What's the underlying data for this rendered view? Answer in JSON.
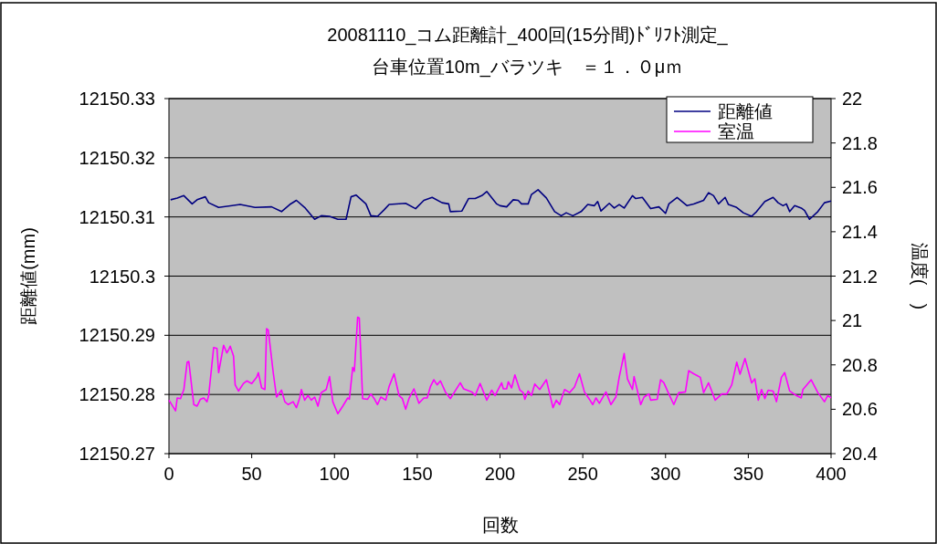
{
  "chart_data": {
    "type": "line",
    "title": "20081110_コム距離計_400回(15分間)ﾄﾞﾘﾌﾄ測定_",
    "subtitle": "台車位置10m_バラツキ　＝１．０μｍ",
    "xlabel": "回数",
    "ylabel": "距離値(mm)",
    "y2label": "温度(　)",
    "xlim": [
      0,
      400
    ],
    "xticks": [
      0,
      50,
      100,
      150,
      200,
      250,
      300,
      350,
      400
    ],
    "ylim": [
      12150.27,
      12150.33
    ],
    "yticks": [
      12150.27,
      12150.28,
      12150.29,
      12150.3,
      12150.31,
      12150.32,
      12150.33
    ],
    "y2lim": [
      20.4,
      22
    ],
    "y2ticks": [
      20.4,
      20.6,
      20.8,
      21,
      21.2,
      21.4,
      21.6,
      21.8,
      22
    ],
    "grid": "y",
    "legend": "top right",
    "marker": "none",
    "line_style": "solid",
    "series": [
      {
        "name": "距離値",
        "color": "#000080",
        "x": [
          1,
          5,
          9,
          14,
          17,
          22,
          24,
          30,
          43,
          52,
          62,
          68,
          73,
          77,
          82,
          88,
          92,
          97,
          102,
          107,
          110,
          113,
          119,
          122,
          126,
          130,
          133,
          143,
          149,
          154,
          159,
          165,
          169,
          170,
          177,
          181,
          185,
          189,
          192,
          198,
          200,
          204,
          208,
          211,
          213,
          217,
          219,
          223,
          228,
          233,
          237,
          240,
          244,
          249,
          253,
          257,
          259,
          261,
          266,
          269,
          272,
          275,
          280,
          282,
          286,
          291,
          296,
          300,
          302,
          307,
          313,
          317,
          323,
          326,
          329,
          332,
          336,
          338,
          343,
          347,
          352,
          355,
          360,
          365,
          368,
          371,
          373,
          375,
          378,
          382,
          384,
          387,
          392,
          396,
          400
        ],
        "values": [
          12150.3129,
          12150.3132,
          12150.3136,
          12150.3122,
          12150.3129,
          12150.3134,
          12150.3124,
          12150.3116,
          12150.3121,
          12150.3116,
          12150.3117,
          12150.3109,
          12150.3121,
          12150.3128,
          12150.3116,
          12150.3096,
          12150.3102,
          12150.3101,
          12150.3096,
          12150.3096,
          12150.3134,
          12150.3137,
          12150.3122,
          12150.3102,
          12150.3101,
          12150.3112,
          12150.3121,
          12150.3123,
          12150.3114,
          12150.3128,
          12150.3133,
          12150.3124,
          12150.3122,
          12150.3109,
          12150.311,
          12150.3131,
          12150.3131,
          12150.3136,
          12150.3143,
          12150.3122,
          12150.3119,
          12150.3117,
          12150.3129,
          12150.3128,
          12150.3122,
          12150.3122,
          12150.3138,
          12150.3146,
          12150.3132,
          12150.3109,
          12150.3102,
          12150.3107,
          12150.3102,
          12150.3109,
          12150.3121,
          12150.3119,
          12150.3126,
          12150.311,
          12150.3123,
          12150.3115,
          12150.3121,
          12150.3115,
          12150.3136,
          12150.3131,
          12150.3133,
          12150.3114,
          12150.3117,
          12150.3106,
          12150.3122,
          12150.3133,
          12150.3119,
          12150.3122,
          12150.3128,
          12150.3141,
          12150.3136,
          12150.3122,
          12150.3133,
          12150.3121,
          12150.3116,
          12150.3107,
          12150.3101,
          12150.3109,
          12150.3126,
          12150.3133,
          12150.3124,
          12150.3119,
          12150.3122,
          12150.3109,
          12150.3119,
          12150.3115,
          12150.3111,
          12150.3096,
          12150.3109,
          12150.3124,
          12150.3127
        ]
      },
      {
        "name": "室温",
        "color": "#ff00ff",
        "axis": "y2",
        "x": [
          0,
          4,
          5,
          7,
          9,
          11,
          12,
          15,
          17,
          19,
          21,
          23,
          24,
          27,
          29,
          30,
          33,
          35,
          36,
          37,
          39,
          40,
          42,
          45,
          47,
          50,
          53,
          54,
          56,
          58,
          59,
          60,
          63,
          65,
          68,
          70,
          72,
          75,
          77,
          79,
          80,
          82,
          84,
          86,
          88,
          90,
          92,
          95,
          97,
          99,
          102,
          105,
          108,
          109,
          111,
          112,
          114,
          115,
          117,
          120,
          122,
          124,
          126,
          128,
          131,
          133,
          136,
          139,
          141,
          143,
          145,
          148,
          151,
          154,
          156,
          158,
          160,
          162,
          164,
          167,
          170,
          176,
          178,
          183,
          185,
          188,
          192,
          195,
          197,
          201,
          202,
          204,
          205,
          207,
          209,
          212,
          214,
          215,
          217,
          219,
          221,
          224,
          228,
          232,
          234,
          236,
          239,
          242,
          245,
          248,
          251,
          254,
          256,
          258,
          260,
          264,
          267,
          270,
          272,
          275,
          277,
          280,
          281,
          285,
          287,
          290,
          291,
          295,
          297,
          299,
          302,
          305,
          308,
          309,
          312,
          314,
          317,
          321,
          323,
          326,
          330,
          334,
          337,
          340,
          343,
          345,
          348,
          352,
          354,
          356,
          358,
          360,
          362,
          365,
          367,
          370,
          372,
          375,
          379,
          382,
          383,
          388,
          392,
          396,
          398,
          400
        ],
        "values": [
          20.641,
          20.593,
          20.651,
          20.648,
          20.689,
          20.812,
          20.815,
          20.621,
          20.614,
          20.645,
          20.651,
          20.634,
          20.662,
          20.878,
          20.874,
          20.765,
          20.888,
          20.854,
          20.867,
          20.884,
          20.84,
          20.71,
          20.682,
          20.716,
          20.728,
          20.716,
          20.744,
          20.765,
          20.696,
          20.689,
          20.963,
          20.957,
          20.765,
          20.655,
          20.686,
          20.634,
          20.621,
          20.634,
          20.607,
          20.651,
          20.689,
          20.641,
          20.662,
          20.641,
          20.655,
          20.614,
          20.675,
          20.689,
          20.747,
          20.634,
          20.58,
          20.614,
          20.651,
          20.645,
          20.788,
          20.771,
          21.015,
          21.011,
          20.648,
          20.645,
          20.669,
          20.648,
          20.621,
          20.655,
          20.641,
          20.703,
          20.76,
          20.662,
          20.648,
          20.6,
          20.648,
          20.692,
          20.627,
          20.651,
          20.651,
          20.703,
          20.733,
          20.71,
          20.728,
          20.678,
          20.648,
          20.719,
          20.692,
          20.678,
          20.662,
          20.716,
          20.641,
          20.686,
          20.662,
          20.719,
          20.692,
          20.692,
          20.724,
          20.696,
          20.755,
          20.686,
          20.675,
          20.645,
          20.682,
          20.662,
          20.714,
          20.689,
          20.733,
          20.607,
          20.641,
          20.621,
          20.689,
          20.675,
          20.7,
          20.76,
          20.678,
          20.645,
          20.621,
          20.651,
          20.627,
          20.678,
          20.621,
          20.655,
          20.744,
          20.851,
          20.737,
          20.689,
          20.747,
          20.621,
          20.655,
          20.669,
          20.641,
          20.645,
          20.733,
          20.719,
          20.669,
          20.621,
          20.675,
          20.675,
          20.678,
          20.774,
          20.76,
          20.744,
          20.675,
          20.719,
          20.641,
          20.669,
          20.669,
          20.71,
          20.812,
          20.758,
          20.829,
          20.719,
          20.737,
          20.641,
          20.689,
          20.648,
          20.686,
          20.682,
          20.634,
          20.744,
          20.765,
          20.682,
          20.662,
          20.651,
          20.689,
          20.733,
          20.675,
          20.634,
          20.662,
          20.651
        ]
      }
    ]
  }
}
